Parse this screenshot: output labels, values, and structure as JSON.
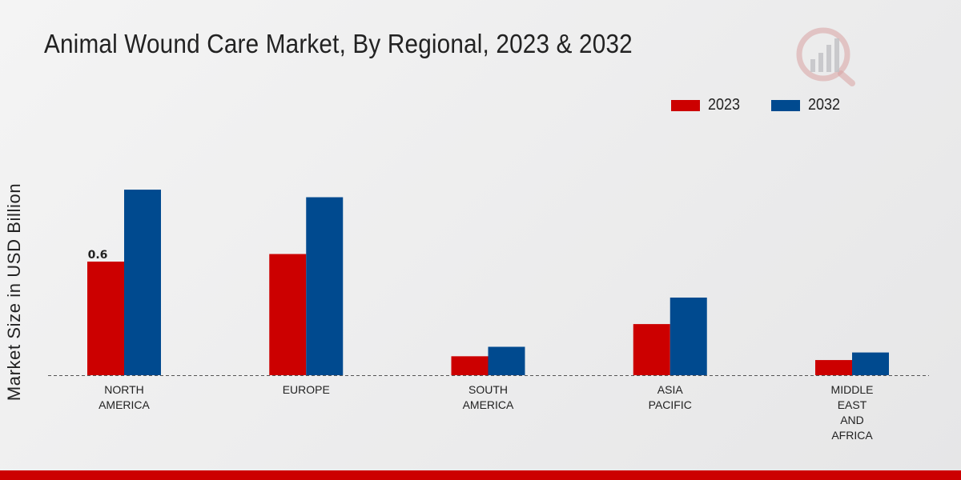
{
  "chart_data": {
    "type": "bar",
    "title": "Animal Wound Care Market, By Regional, 2023 & 2032",
    "xlabel": "",
    "ylabel": "Market Size in USD Billion",
    "categories": [
      [
        "NORTH",
        "AMERICA"
      ],
      [
        "EUROPE"
      ],
      [
        "SOUTH",
        "AMERICA"
      ],
      [
        "ASIA",
        "PACIFIC"
      ],
      [
        "MIDDLE",
        "EAST",
        "AND",
        "AFRICA"
      ]
    ],
    "series": [
      {
        "name": "2023",
        "color": "#cc0000",
        "values": [
          0.6,
          0.64,
          0.1,
          0.27,
          0.08
        ]
      },
      {
        "name": "2032",
        "color": "#004a8f",
        "values": [
          0.98,
          0.94,
          0.15,
          0.41,
          0.12
        ]
      }
    ],
    "data_labels": [
      {
        "series": 0,
        "index": 0,
        "text": "0.6"
      }
    ],
    "ylim": [
      0,
      1.2
    ],
    "grid": false,
    "legend_position": "top-right"
  }
}
